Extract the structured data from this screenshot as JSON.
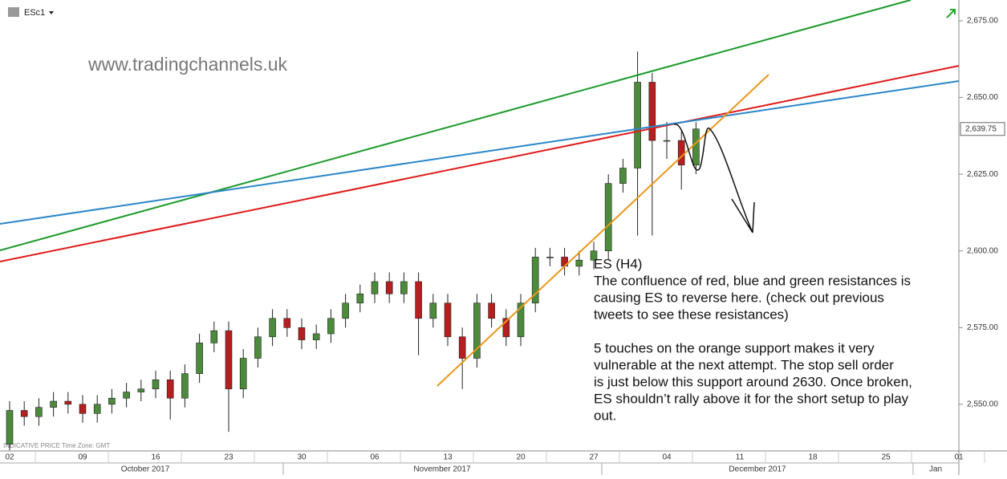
{
  "chart_data": {
    "type": "candlestick",
    "symbol": "ESc1",
    "watermark": "www.tradingchannels.uk",
    "footer": "INDICATIVE PRICE   Time Zone: GMT",
    "last_price": {
      "value": 2639.75,
      "label": "2,639.75"
    },
    "annotation": [
      "ES (H4)",
      "The confluence of red, blue and green resistances is",
      "causing ES to reverse here. (check out previous",
      "tweets to see these resistances)",
      "5 touches on the orange support makes it very",
      "vulnerable at the next attempt. The stop sell order",
      "is just below this support around 2630. Once broken,",
      "ES shouldn’t rally above it for the short setup to play",
      "out."
    ],
    "months": [
      "October 2017",
      "November 2017",
      "December 2017",
      "Jan"
    ],
    "categories": [
      "02",
      null,
      null,
      null,
      null,
      "09",
      null,
      null,
      null,
      null,
      "16",
      null,
      null,
      null,
      null,
      "23",
      null,
      null,
      null,
      null,
      "30",
      null,
      null,
      null,
      null,
      "06",
      null,
      null,
      null,
      null,
      "13",
      null,
      null,
      null,
      null,
      "20",
      null,
      null,
      null,
      null,
      "27",
      null,
      null,
      null,
      null,
      "04",
      null,
      null,
      null,
      null,
      "11",
      null,
      null,
      null,
      null,
      "18",
      null,
      null,
      null,
      null,
      "25",
      null,
      null,
      null,
      null,
      "01"
    ],
    "open": [
      2537,
      2548,
      2546,
      2549,
      2551,
      2550,
      2547,
      2550,
      2552,
      2554,
      2555,
      2558,
      2552,
      2560,
      2570,
      2574,
      2555,
      2565,
      2572,
      2578,
      2575,
      2571,
      2573,
      2578,
      2583,
      2586,
      2590,
      2586,
      2590,
      2578,
      2583,
      2572,
      2565,
      2583,
      2578,
      2572,
      2583,
      2598,
      2598,
      2595,
      2597,
      2600,
      2622,
      2627,
      2655,
      2636,
      2636,
      2628,
      null,
      null,
      null,
      null,
      null,
      null,
      null,
      null,
      null,
      null,
      null,
      null,
      null,
      null,
      null,
      null,
      null,
      null
    ],
    "high": [
      2551,
      2551,
      2552,
      2554,
      2554,
      2553,
      2553,
      2555,
      2557,
      2558,
      2561,
      2561,
      2563,
      2573,
      2577,
      2577,
      2568,
      2575,
      2581,
      2581,
      2578,
      2576,
      2581,
      2586,
      2589,
      2593,
      2593,
      2593,
      2593,
      2586,
      2586,
      2575,
      2586,
      2586,
      2581,
      2586,
      2601,
      2601,
      2601,
      2600,
      2603,
      2625,
      2630,
      2665,
      2658,
      2642,
      2639,
      2642,
      null,
      null,
      null,
      null,
      null,
      null,
      null,
      null,
      null,
      null,
      null,
      null,
      null,
      null,
      null,
      null,
      null,
      null
    ],
    "low": [
      2535,
      2543,
      2543,
      2546,
      2547,
      2544,
      2544,
      2547,
      2549,
      2551,
      2552,
      2545,
      2549,
      2557,
      2567,
      2541,
      2552,
      2562,
      2569,
      2572,
      2568,
      2568,
      2570,
      2575,
      2580,
      2583,
      2583,
      2583,
      2566,
      2575,
      2569,
      2555,
      2562,
      2575,
      2569,
      2569,
      2580,
      2595,
      2592,
      2592,
      2594,
      2597,
      2619,
      2605,
      2605,
      2630,
      2620,
      2625,
      null,
      null,
      null,
      null,
      null,
      null,
      null,
      null,
      null,
      null,
      null,
      null,
      null,
      null,
      null,
      null,
      null,
      null
    ],
    "close": [
      2548,
      2546,
      2549,
      2551,
      2550,
      2547,
      2550,
      2552,
      2554,
      2555,
      2558,
      2552,
      2560,
      2570,
      2574,
      2555,
      2565,
      2572,
      2578,
      2575,
      2571,
      2573,
      2578,
      2583,
      2586,
      2590,
      2586,
      2590,
      2578,
      2583,
      2572,
      2565,
      2583,
      2578,
      2572,
      2583,
      2598,
      2598,
      2595,
      2597,
      2600,
      2622,
      2627,
      2655,
      2636,
      2636,
      2628,
      2639.75,
      null,
      null,
      null,
      null,
      null,
      null,
      null,
      null,
      null,
      null,
      null,
      null,
      null,
      null,
      null,
      null,
      null,
      null
    ],
    "up_color": "#4c8a3c",
    "down_color": "#b51f1f",
    "ylim": [
      2534.8,
      2681.8
    ],
    "yticks": [
      {
        "value": 2550,
        "label": "2,550.00"
      },
      {
        "value": 2575,
        "label": "2,575.00"
      },
      {
        "value": 2600,
        "label": "2,600.00"
      },
      {
        "value": 2625,
        "label": "2,625.00"
      },
      {
        "value": 2650,
        "label": "2,650.00"
      },
      {
        "value": 2675,
        "label": "2,675.00"
      }
    ]
  }
}
